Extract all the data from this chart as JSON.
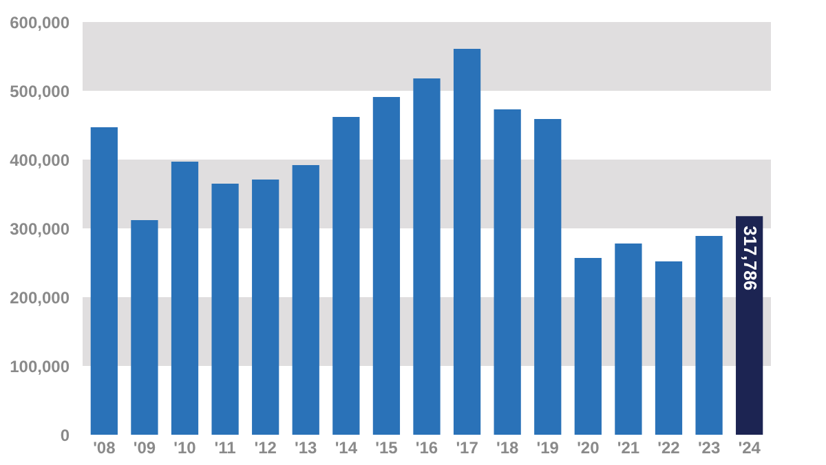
{
  "chart_data": {
    "type": "bar",
    "categories": [
      "'08",
      "'09",
      "'10",
      "'11",
      "'12",
      "'13",
      "'14",
      "'15",
      "'16",
      "'17",
      "'18",
      "'19",
      "'20",
      "'21",
      "'22",
      "'23",
      "'24"
    ],
    "values": [
      447000,
      312000,
      397000,
      365000,
      371000,
      392000,
      462000,
      491000,
      518000,
      561000,
      473000,
      459000,
      257000,
      278000,
      252000,
      289000,
      317786
    ],
    "colors": [
      "#2a72b8",
      "#2a72b8",
      "#2a72b8",
      "#2a72b8",
      "#2a72b8",
      "#2a72b8",
      "#2a72b8",
      "#2a72b8",
      "#2a72b8",
      "#2a72b8",
      "#2a72b8",
      "#2a72b8",
      "#2a72b8",
      "#2a72b8",
      "#2a72b8",
      "#2a72b8",
      "#1c2452"
    ],
    "value_labels": [
      null,
      null,
      null,
      null,
      null,
      null,
      null,
      null,
      null,
      null,
      null,
      null,
      null,
      null,
      null,
      null,
      "317,786"
    ],
    "ylim": [
      0,
      600000
    ],
    "yticks": [
      0,
      {
        "value": 100000,
        "label": "100,000"
      },
      {
        "value": 200000,
        "label": "200,000"
      },
      {
        "value": 300000,
        "label": "300,000"
      },
      {
        "value": 400000,
        "label": "400,000"
      },
      {
        "value": 500000,
        "label": "500,000"
      },
      {
        "value": 600000,
        "label": "600,000"
      }
    ],
    "bands": [
      {
        "axis": "y",
        "from": 100000,
        "to": 200000,
        "color": "#e0dedf"
      },
      {
        "axis": "y",
        "from": 300000,
        "to": 400000,
        "color": "#e0dedf"
      },
      {
        "axis": "y",
        "from": 500000,
        "to": 600000,
        "color": "#e0dedf"
      }
    ],
    "grid": false
  }
}
